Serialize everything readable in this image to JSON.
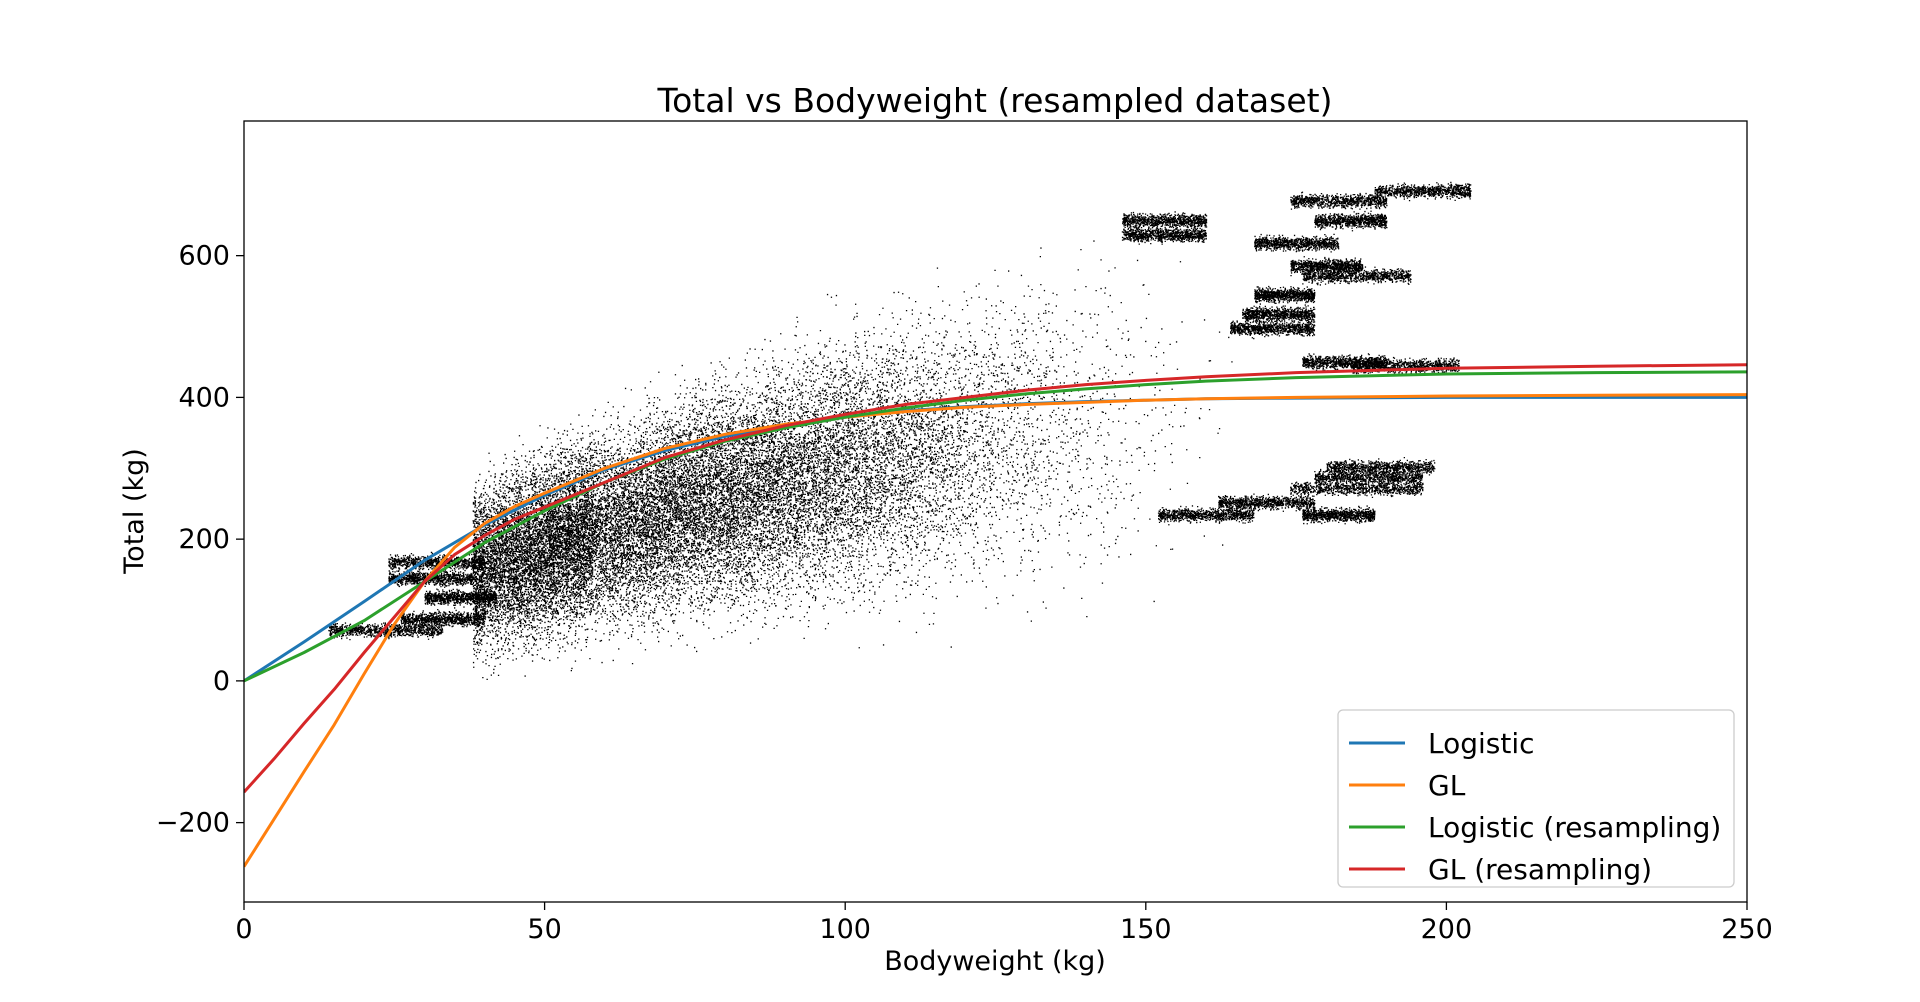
{
  "chart_data": {
    "type": "scatter",
    "title": "Total vs Bodyweight (resampled dataset)",
    "xlabel": "Bodyweight (kg)",
    "ylabel": "Total (kg)",
    "xlim": [
      0,
      250
    ],
    "ylim": [
      -312,
      790
    ],
    "x_ticks": [
      0,
      50,
      100,
      150,
      200,
      250
    ],
    "y_ticks": [
      -200,
      0,
      200,
      400,
      600
    ],
    "x_tick_labels": [
      "0",
      "50",
      "100",
      "150",
      "200",
      "250"
    ],
    "y_tick_labels": [
      "−200",
      "0",
      "200",
      "400",
      "600"
    ],
    "grid": false,
    "legend_position": "lower-right",
    "scatter": {
      "name": "",
      "color": "#000000",
      "description_points": "dense cloud of athlete totals vs bodyweight",
      "clusters": [
        {
          "x_range": [
            14,
            33
          ],
          "y": 72
        },
        {
          "x_range": [
            26,
            40
          ],
          "y": 88
        },
        {
          "x_range": [
            30,
            42
          ],
          "y": 118
        },
        {
          "x_range": [
            24,
            38
          ],
          "y": 145
        },
        {
          "x_range": [
            24,
            40
          ],
          "y": 168
        },
        {
          "x_range": [
            152,
            168
          ],
          "y": 235
        },
        {
          "x_range": [
            162,
            178
          ],
          "y": 252
        },
        {
          "x_range": [
            176,
            188
          ],
          "y": 235
        },
        {
          "x_range": [
            174,
            196
          ],
          "y": 272
        },
        {
          "x_range": [
            178,
            196
          ],
          "y": 288
        },
        {
          "x_range": [
            180,
            198
          ],
          "y": 302
        },
        {
          "x_range": [
            176,
            190
          ],
          "y": 450
        },
        {
          "x_range": [
            184,
            202
          ],
          "y": 445
        },
        {
          "x_range": [
            164,
            178
          ],
          "y": 498
        },
        {
          "x_range": [
            166,
            178
          ],
          "y": 518
        },
        {
          "x_range": [
            168,
            178
          ],
          "y": 545
        },
        {
          "x_range": [
            176,
            194
          ],
          "y": 572
        },
        {
          "x_range": [
            174,
            186
          ],
          "y": 586
        },
        {
          "x_range": [
            168,
            182
          ],
          "y": 618
        },
        {
          "x_range": [
            178,
            190
          ],
          "y": 650
        },
        {
          "x_range": [
            174,
            190
          ],
          "y": 678
        },
        {
          "x_range": [
            188,
            204
          ],
          "y": 692
        },
        {
          "x_range": [
            146,
            160
          ],
          "y": 630
        },
        {
          "x_range": [
            146,
            160
          ],
          "y": 650
        }
      ]
    },
    "series": [
      {
        "name": "Logistic",
        "color": "#1f77b4",
        "x": [
          0,
          10,
          20,
          30,
          40,
          50,
          60,
          70,
          80,
          90,
          100,
          110,
          120,
          130,
          140,
          150,
          160,
          175,
          200,
          225,
          250
        ],
        "y": [
          0,
          55,
          112,
          170,
          220,
          262,
          298,
          325,
          345,
          360,
          372,
          381,
          387,
          391,
          394,
          396,
          398,
          399,
          400,
          400,
          400
        ]
      },
      {
        "name": "GL",
        "color": "#ff7f0e",
        "x": [
          0,
          5,
          10,
          15,
          20,
          25,
          30,
          35,
          40,
          45,
          50,
          60,
          70,
          80,
          90,
          100,
          110,
          120,
          130,
          140,
          150,
          160,
          175,
          200,
          225,
          250
        ],
        "y": [
          -262,
          -195,
          -128,
          -62,
          10,
          80,
          140,
          188,
          222,
          246,
          265,
          300,
          328,
          348,
          362,
          372,
          380,
          386,
          390,
          393,
          396,
          398,
          400,
          402,
          403,
          404
        ]
      },
      {
        "name": "Logistic (resampling)",
        "color": "#2ca02c",
        "x": [
          0,
          10,
          20,
          30,
          40,
          50,
          60,
          70,
          80,
          90,
          100,
          110,
          120,
          130,
          140,
          150,
          160,
          175,
          200,
          225,
          250
        ],
        "y": [
          0,
          40,
          85,
          140,
          195,
          240,
          280,
          313,
          338,
          357,
          372,
          385,
          396,
          405,
          412,
          418,
          423,
          428,
          433,
          435,
          436
        ]
      },
      {
        "name": "GL (resampling)",
        "color": "#d62728",
        "x": [
          0,
          5,
          10,
          15,
          20,
          25,
          30,
          35,
          40,
          45,
          50,
          60,
          70,
          80,
          90,
          100,
          110,
          120,
          130,
          140,
          150,
          160,
          175,
          200,
          225,
          250
        ],
        "y": [
          -157,
          -110,
          -60,
          -12,
          40,
          90,
          140,
          178,
          205,
          228,
          245,
          280,
          315,
          340,
          360,
          376,
          390,
          400,
          410,
          418,
          424,
          429,
          435,
          441,
          444,
          446
        ]
      }
    ]
  }
}
